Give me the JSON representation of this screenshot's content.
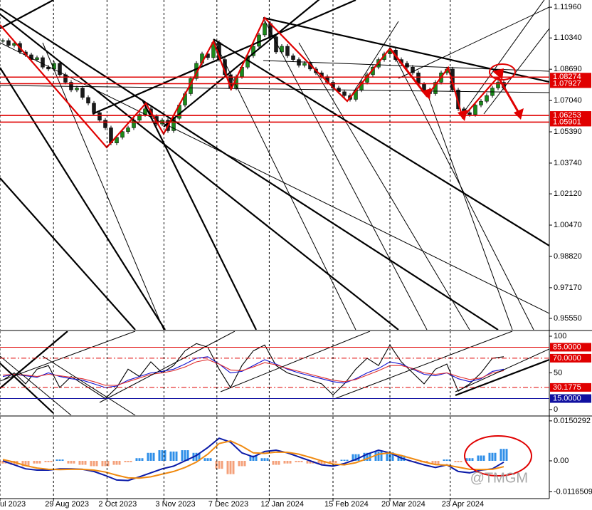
{
  "chart_data": [
    {
      "type": "candlestick",
      "values": [
        1.102,
        1.0995,
        1.1005,
        1.096,
        1.0945,
        1.092,
        1.093,
        1.088,
        1.087,
        1.09,
        1.084,
        1.08,
        1.076,
        1.077,
        1.072,
        1.069,
        1.064,
        1.06,
        1.056,
        1.048,
        1.051,
        1.054,
        1.056,
        1.06,
        1.063,
        1.066,
        1.062,
        1.058,
        1.06,
        1.0545,
        1.061,
        1.068,
        1.074,
        1.082,
        1.09,
        1.095,
        1.093,
        1.101,
        1.092,
        1.084,
        1.077,
        1.083,
        1.088,
        1.094,
        1.099,
        1.105,
        1.111,
        1.104,
        1.096,
        1.099,
        1.094,
        1.092,
        1.089,
        1.09,
        1.087,
        1.085,
        1.083,
        1.08,
        1.077,
        1.075,
        1.073,
        1.071,
        1.076,
        1.08,
        1.084,
        1.088,
        1.092,
        1.095,
        1.097,
        1.092,
        1.09,
        1.088,
        1.085,
        1.079,
        1.076,
        1.074,
        1.08,
        1.085,
        1.087,
        1.076,
        1.066,
        1.064,
        1.063,
        1.068,
        1.07,
        1.073,
        1.077,
        1.08,
        1.077
      ],
      "up_color": "#1a8a1a",
      "down_color": "#1a1a1a",
      "xlim": [
        -0.5,
        95.75
      ],
      "ylim": [
        0.9495,
        1.1234
      ],
      "yticks": [
        {
          "value": 1.1196,
          "label": "1.11960"
        },
        {
          "value": 1.1034,
          "label": "1.10340"
        },
        {
          "value": 1.0869,
          "label": "1.08690"
        },
        {
          "value": 1.0704,
          "label": "1.07040"
        },
        {
          "value": 1.0539,
          "label": "1.05390"
        },
        {
          "value": 1.0374,
          "label": "1.03740"
        },
        {
          "value": 1.0212,
          "label": "1.02120"
        },
        {
          "value": 1.0047,
          "label": "1.00470"
        },
        {
          "value": 0.9882,
          "label": "0.98820"
        },
        {
          "value": 0.9717,
          "label": "0.97170"
        },
        {
          "value": 0.9555,
          "label": "0.95550"
        }
      ],
      "levels": [
        {
          "value": 1.08274,
          "color": "#e00000"
        },
        {
          "value": 1.07927,
          "color": "#e00000"
        },
        {
          "value": 1.06253,
          "color": "#e00000"
        },
        {
          "value": 1.05901,
          "color": "#e00000"
        }
      ]
    },
    {
      "type": "line",
      "x": [
        0,
        2,
        4,
        6,
        8,
        10,
        12,
        14,
        16,
        18,
        20,
        22,
        24,
        26,
        28,
        30,
        32,
        34,
        36,
        38,
        40,
        42,
        44,
        46,
        48,
        50,
        52,
        54,
        56,
        58,
        60,
        62,
        64,
        66,
        68,
        70,
        72,
        74,
        76,
        78,
        80,
        82,
        84,
        86,
        88
      ],
      "series": [
        {
          "color": "#000000",
          "values": [
            40,
            50,
            35,
            55,
            60,
            30,
            45,
            35,
            25,
            15,
            30,
            55,
            45,
            65,
            50,
            60,
            80,
            90,
            85,
            55,
            30,
            60,
            80,
            88,
            60,
            50,
            45,
            40,
            35,
            20,
            35,
            55,
            70,
            60,
            88,
            65,
            50,
            35,
            55,
            62,
            25,
            35,
            50,
            70,
            72
          ]
        },
        {
          "color": "#1010d0",
          "values": [
            45,
            48,
            46,
            44,
            50,
            45,
            42,
            40,
            35,
            30,
            32,
            40,
            45,
            50,
            52,
            55,
            62,
            70,
            72,
            62,
            50,
            52,
            60,
            68,
            62,
            55,
            50,
            46,
            42,
            38,
            36,
            42,
            50,
            56,
            65,
            62,
            55,
            48,
            46,
            50,
            42,
            38,
            42,
            52,
            55
          ]
        },
        {
          "color": "#e03030",
          "values": [
            47,
            48,
            47,
            45,
            48,
            46,
            44,
            42,
            38,
            33,
            33,
            38,
            43,
            48,
            50,
            53,
            58,
            65,
            68,
            62,
            54,
            53,
            58,
            64,
            61,
            56,
            52,
            48,
            44,
            40,
            38,
            41,
            47,
            53,
            60,
            60,
            56,
            50,
            48,
            50,
            45,
            41,
            43,
            50,
            53
          ]
        }
      ],
      "xlim": [
        -0.5,
        95.75
      ],
      "ylim": [
        -7.8,
        106.8
      ],
      "yticks": [
        100,
        50,
        0
      ],
      "levels": [
        {
          "value": 85,
          "label": "85.0000",
          "color": "#e00000"
        },
        {
          "value": 70,
          "label": "70.0000",
          "color": "#e00000"
        },
        {
          "value": 30.1775,
          "label": "30.1775",
          "color": "#e00000"
        },
        {
          "value": 15,
          "label": "15.0000",
          "color": "#1010a0"
        }
      ]
    },
    {
      "type": "macd",
      "x": [
        0,
        2,
        4,
        6,
        8,
        10,
        12,
        14,
        16,
        18,
        20,
        22,
        24,
        26,
        28,
        30,
        32,
        34,
        36,
        38,
        40,
        42,
        44,
        46,
        48,
        50,
        52,
        54,
        56,
        58,
        60,
        62,
        64,
        66,
        68,
        70,
        72,
        74,
        76,
        78,
        80,
        82,
        84,
        86,
        88
      ],
      "histogram": {
        "up_color": "#2f8fe8",
        "down_color": "#f4a07a",
        "values": [
          -0.001,
          -0.0015,
          -0.002,
          -0.001,
          -0.0005,
          0.0005,
          -0.001,
          -0.0015,
          -0.002,
          -0.002,
          -0.0015,
          -0.0005,
          0.001,
          0.003,
          0.004,
          0.0035,
          0.004,
          0.003,
          0.001,
          -0.003,
          -0.005,
          -0.002,
          0.002,
          0.001,
          -0.0015,
          -0.001,
          -0.0005,
          -0.001,
          -0.0012,
          -0.0008,
          0.0004,
          0.0025,
          0.003,
          0.0035,
          0.0032,
          0.002,
          -0.0003,
          -0.0006,
          -0.0012,
          0.0005,
          -0.0005,
          0.001,
          0.002,
          0.003,
          0.0045
        ]
      },
      "series": [
        {
          "color": "#0a1aa8",
          "values": [
            0.0,
            -0.0015,
            -0.003,
            -0.0035,
            -0.0035,
            -0.003,
            -0.003,
            -0.0032,
            -0.004,
            -0.0055,
            -0.0072,
            -0.0074,
            -0.006,
            -0.0045,
            -0.003,
            -0.002,
            0.0,
            0.002,
            0.005,
            0.0085,
            0.007,
            0.003,
            0.0015,
            0.0035,
            0.004,
            0.003,
            0.0015,
            0.0,
            -0.0015,
            -0.002,
            -0.001,
            0.0005,
            0.0025,
            0.004,
            0.003,
            0.001,
            -0.0003,
            -0.0015,
            -0.0025,
            -0.0015,
            -0.004,
            -0.0045,
            -0.0035,
            -0.003,
            -0.0005
          ]
        },
        {
          "color": "#f08a10",
          "values": [
            0.0005,
            -0.0005,
            -0.0018,
            -0.0027,
            -0.0032,
            -0.0033,
            -0.0032,
            -0.0032,
            -0.0035,
            -0.0042,
            -0.0054,
            -0.0064,
            -0.0065,
            -0.006,
            -0.005,
            -0.004,
            -0.0025,
            -0.0005,
            0.0025,
            0.0065,
            0.0075,
            0.0055,
            0.003,
            0.0028,
            0.0033,
            0.0032,
            0.0025,
            0.0013,
            0.0,
            -0.0012,
            -0.0015,
            -0.0007,
            0.0008,
            0.0025,
            0.003,
            0.002,
            0.0008,
            -0.0004,
            -0.0014,
            -0.0016,
            -0.0024,
            -0.0032,
            -0.0033,
            -0.0032,
            -0.0022
          ]
        }
      ],
      "xlim": [
        -0.5,
        95.75
      ],
      "ylim": [
        -0.0142,
        0.0166
      ],
      "yticks": [
        {
          "value": 0.0150292,
          "label": "0.0150292"
        },
        {
          "value": 0,
          "label": "0.00"
        },
        {
          "value": -0.0116509,
          "label": "-0.0116509"
        }
      ],
      "xticks": [
        {
          "value": -0.5,
          "label": "ul 2023"
        },
        {
          "value": 8.9,
          "label": "29 Aug 2023"
        },
        {
          "value": 18.3,
          "label": "2 Oct 2023"
        },
        {
          "value": 28.3,
          "label": "3 Nov 2023"
        },
        {
          "value": 37.6,
          "label": "7 Dec 2023"
        },
        {
          "value": 46.8,
          "label": "12 Jan 2024"
        },
        {
          "value": 58,
          "label": "15 Feb 2024"
        },
        {
          "value": 68,
          "label": "20 Mar 2024"
        },
        {
          "value": 78.6,
          "label": "23 Apr 2024"
        }
      ],
      "watermark": "@TMGM"
    }
  ]
}
